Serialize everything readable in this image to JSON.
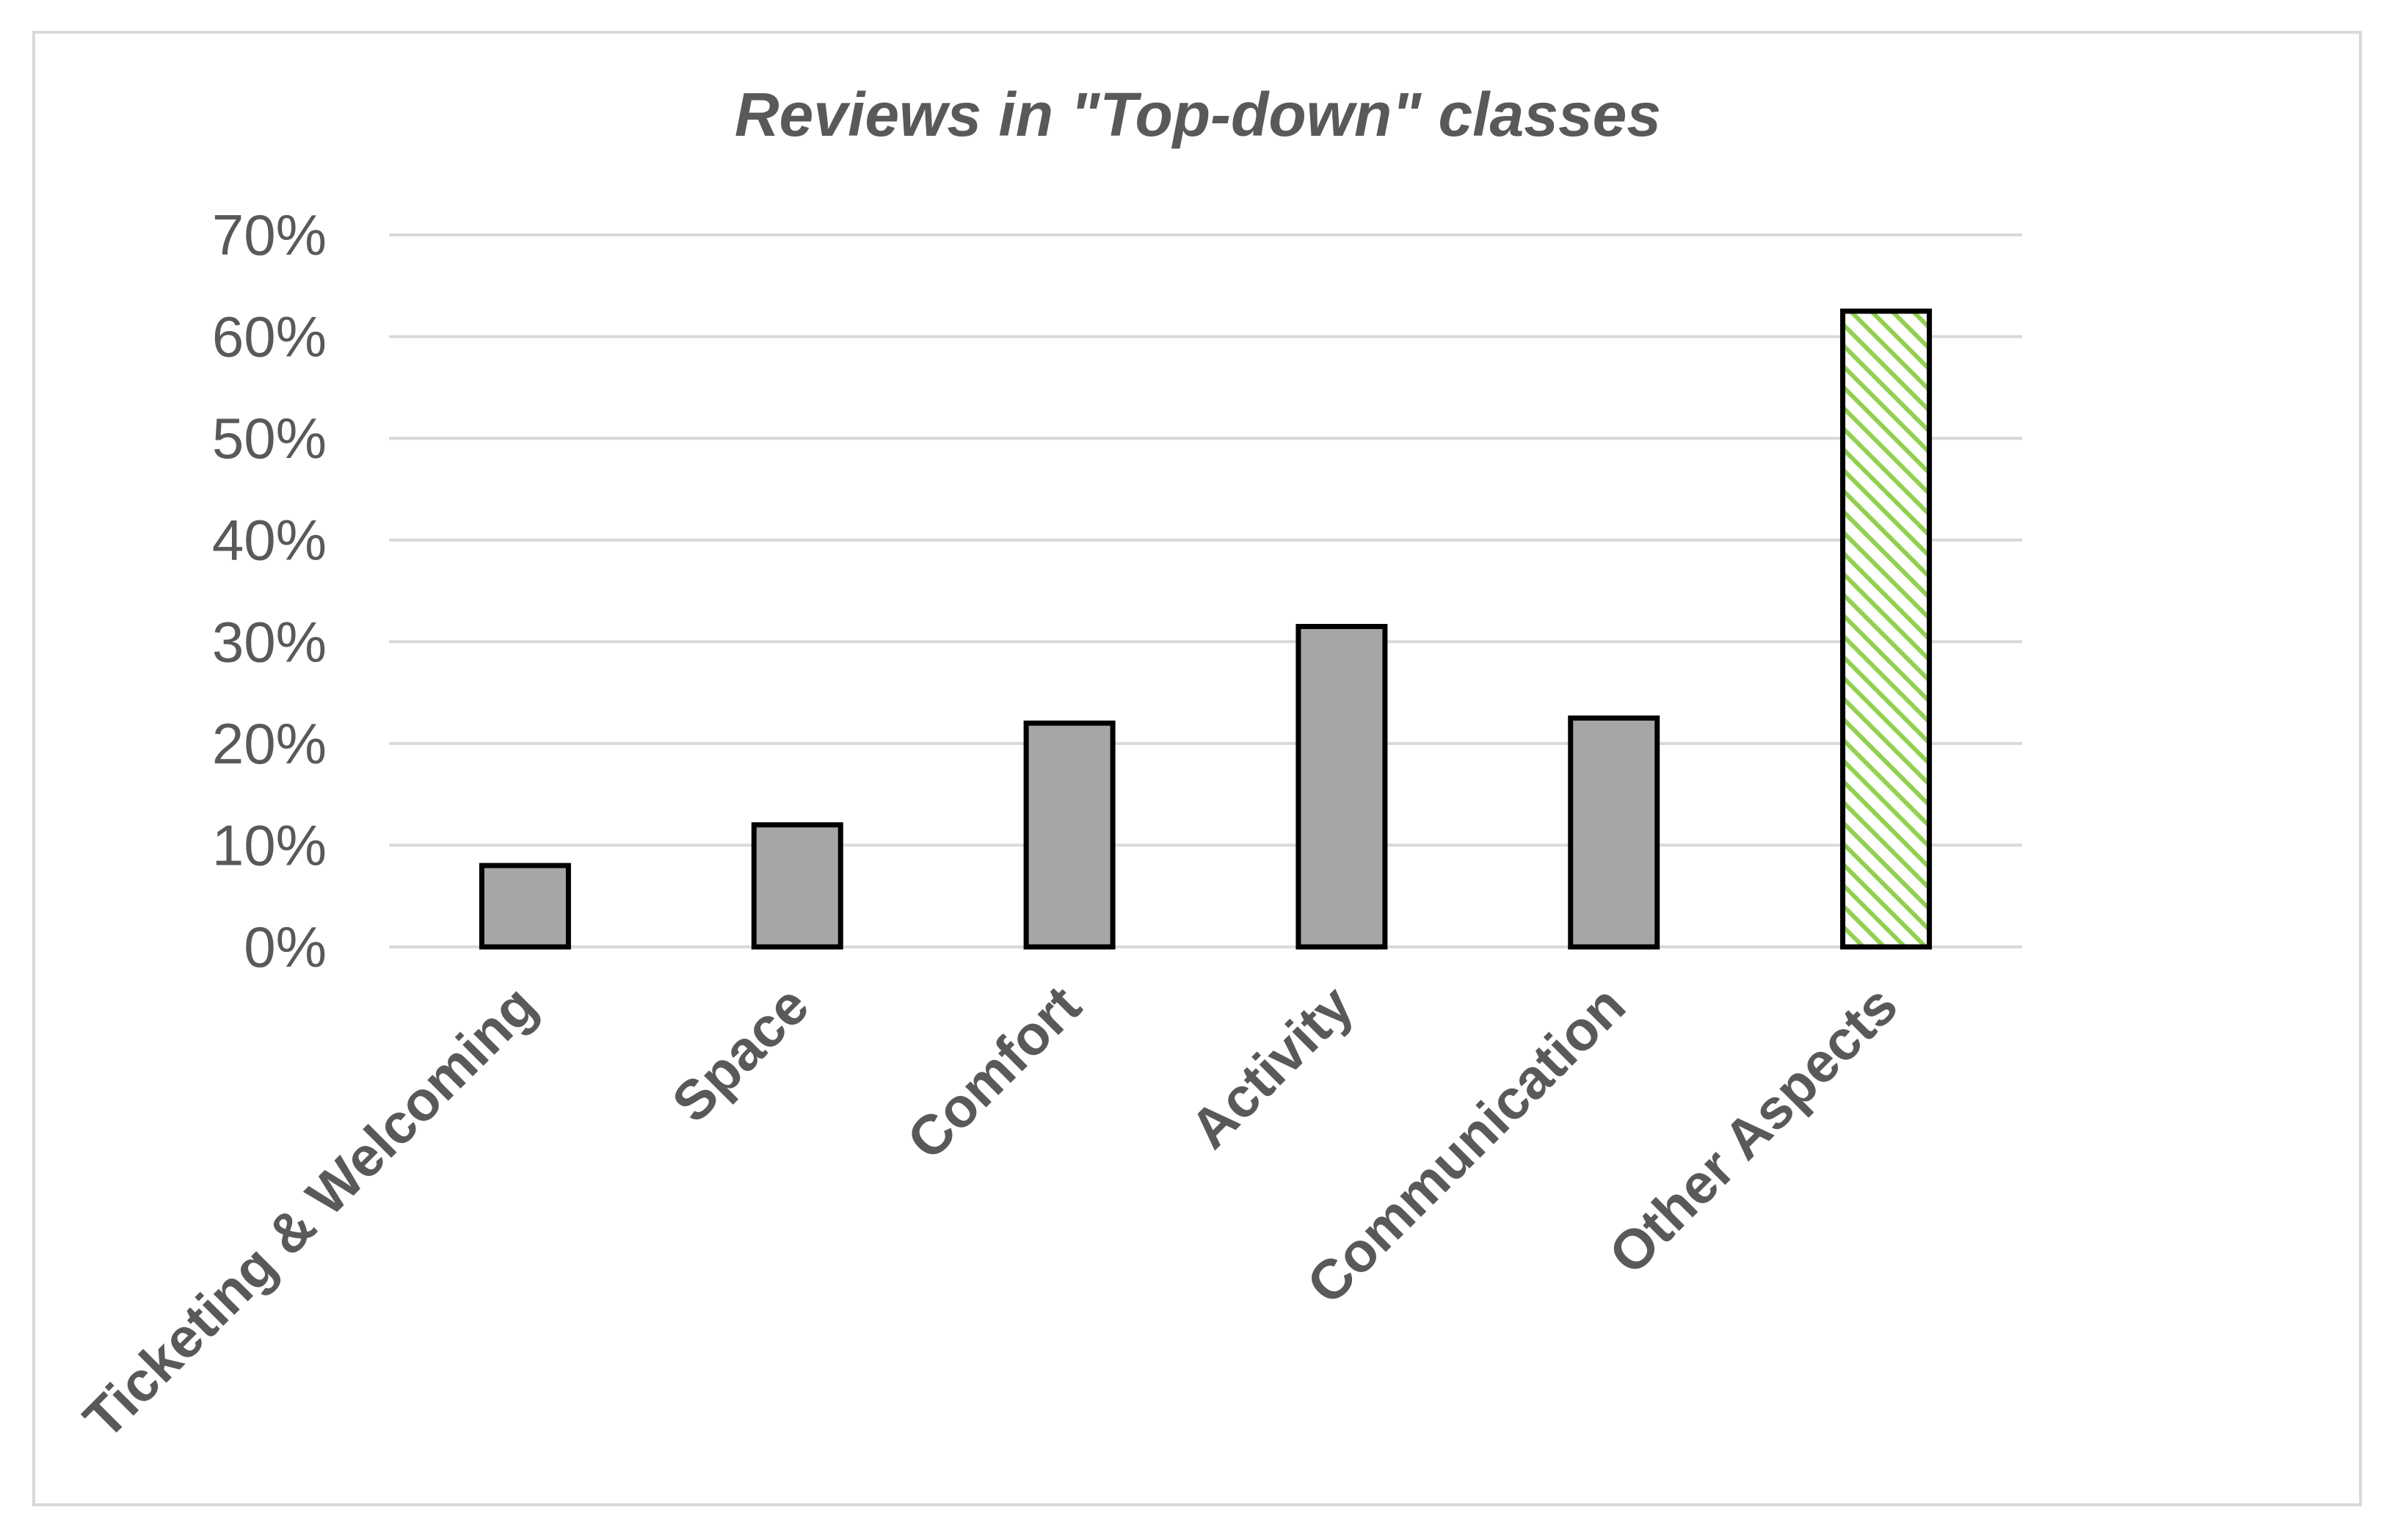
{
  "chart_data": {
    "type": "bar",
    "title": "Reviews in \"Top-down\" classes",
    "xlabel": "",
    "ylabel": "",
    "categories": [
      "Ticketing & Welcoming",
      "Space",
      "Comfort",
      "Activity",
      "Communication",
      "Other Aspects"
    ],
    "values": [
      8,
      12,
      22,
      31.5,
      22.5,
      62.5
    ],
    "value_unit": "%",
    "ylim": [
      0,
      70
    ],
    "yticks": [
      0,
      10,
      20,
      30,
      40,
      50,
      60,
      70
    ],
    "ytick_labels": [
      "0%",
      "10%",
      "20%",
      "30%",
      "40%",
      "50%",
      "60%",
      "70%"
    ],
    "grid": true,
    "legend": "none",
    "bar_styles": [
      "solid",
      "solid",
      "solid",
      "solid",
      "solid",
      "hatched"
    ]
  },
  "colors": {
    "bar_fill": "#a6a6a6",
    "bar_edge": "#000000",
    "hatch_line": "#92d050",
    "gridline": "#d9d9d9",
    "text": "#595959",
    "frame_border": "#d9d9d9"
  }
}
